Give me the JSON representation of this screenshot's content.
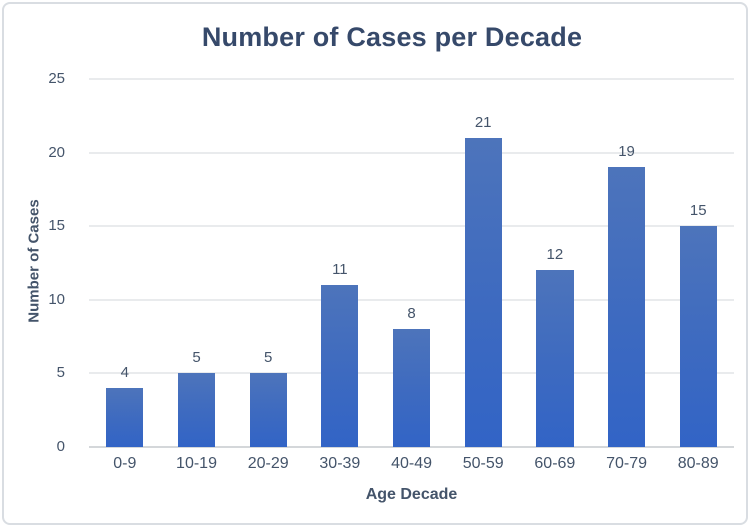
{
  "chart_data": {
    "type": "bar",
    "title": "Number of Cases per Decade",
    "xlabel": "Age Decade",
    "ylabel": "Number of Cases",
    "categories": [
      "0-9",
      "10-19",
      "20-29",
      "30-39",
      "40-49",
      "50-59",
      "60-69",
      "70-79",
      "80-89"
    ],
    "values": [
      4,
      5,
      5,
      11,
      8,
      21,
      12,
      19,
      15
    ],
    "yticks": [
      0,
      5,
      10,
      15,
      20,
      25
    ],
    "ylim": [
      0,
      25
    ],
    "grid": true,
    "legend": false,
    "data_labels": true,
    "colors": {
      "bar_gradient_top": "#4d74bb",
      "bar_gradient_bottom": "#3264c6",
      "title_text": "#36496a",
      "axis_text": "#44546a",
      "data_label_text": "#44546a",
      "gridline": "#e9ebed",
      "axis_line": "#d4d7da",
      "frame_border": "#d9dde2",
      "background": "#ffffff"
    }
  }
}
